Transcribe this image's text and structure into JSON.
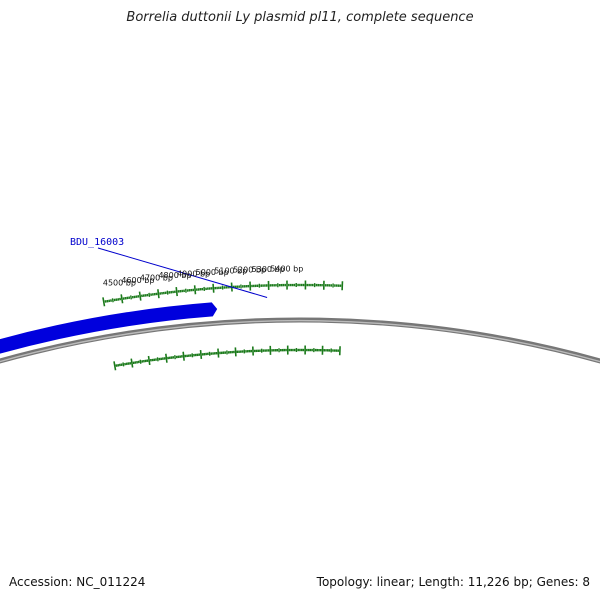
{
  "title": "Borrelia duttonii Ly plasmid pl11, complete sequence",
  "footer": {
    "accession": "Accession: NC_011224",
    "summary": "Topology: linear; Length: 11,226 bp; Genes: 8"
  },
  "colors": {
    "backbone": "#777777",
    "backbone_highlight": "#bbbbbb",
    "ticks": "#1b7a1b",
    "gene_fill": "#0000dd",
    "gene_shadow": "#6b6bff",
    "gene_label": "#0000cc"
  },
  "scale_labels": [
    "4500 bp",
    "4600 bp",
    "4700 bp",
    "4800 bp",
    "4900 bp",
    "5000 bp",
    "5100 bp",
    "5200 bp",
    "5300 bp",
    "5400 bp"
  ],
  "genes": [
    {
      "name": "BDU_16003",
      "strand": "forward"
    }
  ]
}
